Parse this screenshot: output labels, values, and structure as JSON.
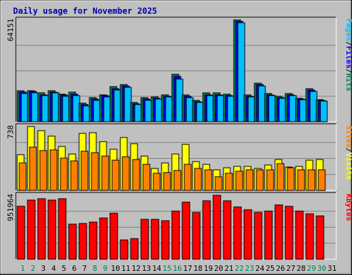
{
  "title": "Daily usage for November 2025",
  "chart_data": [
    {
      "type": "bar",
      "panel": "top",
      "categories": [
        "1",
        "2",
        "3",
        "4",
        "5",
        "6",
        "7",
        "8",
        "9",
        "10",
        "11",
        "12",
        "13",
        "14",
        "15",
        "16",
        "17",
        "18",
        "19",
        "20",
        "21",
        "22",
        "23",
        "24",
        "25",
        "26",
        "27",
        "28",
        "29",
        "30"
      ],
      "max_label": "64151",
      "ylim": [
        0,
        64151
      ],
      "side_labels": [
        "Pages",
        "/",
        "Files",
        "/",
        "Hits"
      ],
      "series": [
        {
          "name": "Hits",
          "color": "#00805c",
          "values": [
            19700,
            19700,
            18000,
            19700,
            17500,
            18600,
            11700,
            15300,
            17100,
            21900,
            23600,
            12300,
            15200,
            15600,
            17100,
            29800,
            16800,
            13500,
            18000,
            18000,
            17500,
            64151,
            17100,
            24200,
            17600,
            15900,
            17900,
            14900,
            20900,
            13900
          ]
        },
        {
          "name": "Files",
          "color": "#0000ff",
          "values": [
            18500,
            19000,
            17000,
            18600,
            16700,
            17200,
            10700,
            14300,
            16400,
            21000,
            22600,
            11300,
            14400,
            14800,
            16200,
            28800,
            15900,
            12600,
            17000,
            17000,
            16600,
            63500,
            16200,
            23400,
            16800,
            15200,
            17000,
            14100,
            20000,
            13400
          ]
        },
        {
          "name": "Pages",
          "color": "#00bfff",
          "values": [
            17700,
            18400,
            16300,
            18000,
            16200,
            16600,
            10000,
            13600,
            15500,
            20000,
            21600,
            11000,
            13600,
            14300,
            15700,
            27000,
            15300,
            12000,
            16300,
            16400,
            16000,
            62500,
            15500,
            22400,
            16300,
            14600,
            16500,
            13700,
            19200,
            13000
          ]
        }
      ]
    },
    {
      "type": "bar",
      "panel": "middle",
      "categories": [
        "1",
        "2",
        "3",
        "4",
        "5",
        "6",
        "7",
        "8",
        "9",
        "10",
        "11",
        "12",
        "13",
        "14",
        "15",
        "16",
        "17",
        "18",
        "19",
        "20",
        "21",
        "22",
        "23",
        "24",
        "25",
        "26",
        "27",
        "28",
        "29",
        "30"
      ],
      "max_label": "738",
      "ylim": [
        0,
        738
      ],
      "side_labels": [
        "Sites",
        "/",
        "Visits"
      ],
      "series": [
        {
          "name": "Visits",
          "color": "#ffff00",
          "values": [
            410,
            738,
            690,
            630,
            510,
            420,
            660,
            670,
            560,
            480,
            610,
            540,
            400,
            250,
            320,
            420,
            530,
            330,
            300,
            240,
            260,
            280,
            280,
            250,
            290,
            360,
            270,
            280,
            350,
            360
          ]
        },
        {
          "name": "Sites",
          "color": "#ff8000",
          "values": [
            320,
            500,
            460,
            470,
            370,
            340,
            450,
            440,
            400,
            350,
            390,
            360,
            300,
            200,
            210,
            230,
            300,
            250,
            240,
            160,
            200,
            220,
            240,
            240,
            240,
            310,
            260,
            240,
            240,
            240
          ]
        }
      ]
    },
    {
      "type": "bar",
      "panel": "bottom",
      "categories": [
        "1",
        "2",
        "3",
        "4",
        "5",
        "6",
        "7",
        "8",
        "9",
        "10",
        "11",
        "12",
        "13",
        "14",
        "15",
        "16",
        "17",
        "18",
        "19",
        "20",
        "21",
        "22",
        "23",
        "24",
        "25",
        "26",
        "27",
        "28",
        "29",
        "30"
      ],
      "max_label": "951964",
      "ylim": [
        0,
        951964
      ],
      "side_labels": [
        "KBytes"
      ],
      "series": [
        {
          "name": "KBytes",
          "color": "#ff0000",
          "values": [
            785000,
            880000,
            905000,
            885000,
            905000,
            522000,
            537000,
            556000,
            613000,
            683000,
            284000,
            305000,
            598000,
            598000,
            575000,
            714000,
            850000,
            695000,
            866000,
            951964,
            872000,
            780000,
            732000,
            700000,
            715000,
            805000,
            790000,
            720000,
            675000,
            641000
          ]
        }
      ]
    }
  ],
  "x_axis": {
    "days": [
      "1",
      "2",
      "3",
      "4",
      "5",
      "6",
      "7",
      "8",
      "9",
      "10",
      "11",
      "12",
      "13",
      "14",
      "15",
      "16",
      "17",
      "18",
      "19",
      "20",
      "21",
      "22",
      "23",
      "24",
      "25",
      "26",
      "27",
      "28",
      "29",
      "30",
      "31"
    ],
    "weekend_days": [
      "1",
      "2",
      "8",
      "9",
      "15",
      "16",
      "22",
      "23",
      "29",
      "30"
    ],
    "weekday_color": "#000000",
    "weekend_color": "#00805c"
  },
  "colors": {
    "background": "#c0c0c0",
    "plot_background": "#c0c0c0",
    "title": "#0000b0",
    "pages": "#00bfff",
    "files": "#0000ff",
    "hits": "#00805c",
    "visits": "#ffff00",
    "sites": "#ff8000",
    "kbytes": "#ff0000",
    "slash": "#000000"
  }
}
